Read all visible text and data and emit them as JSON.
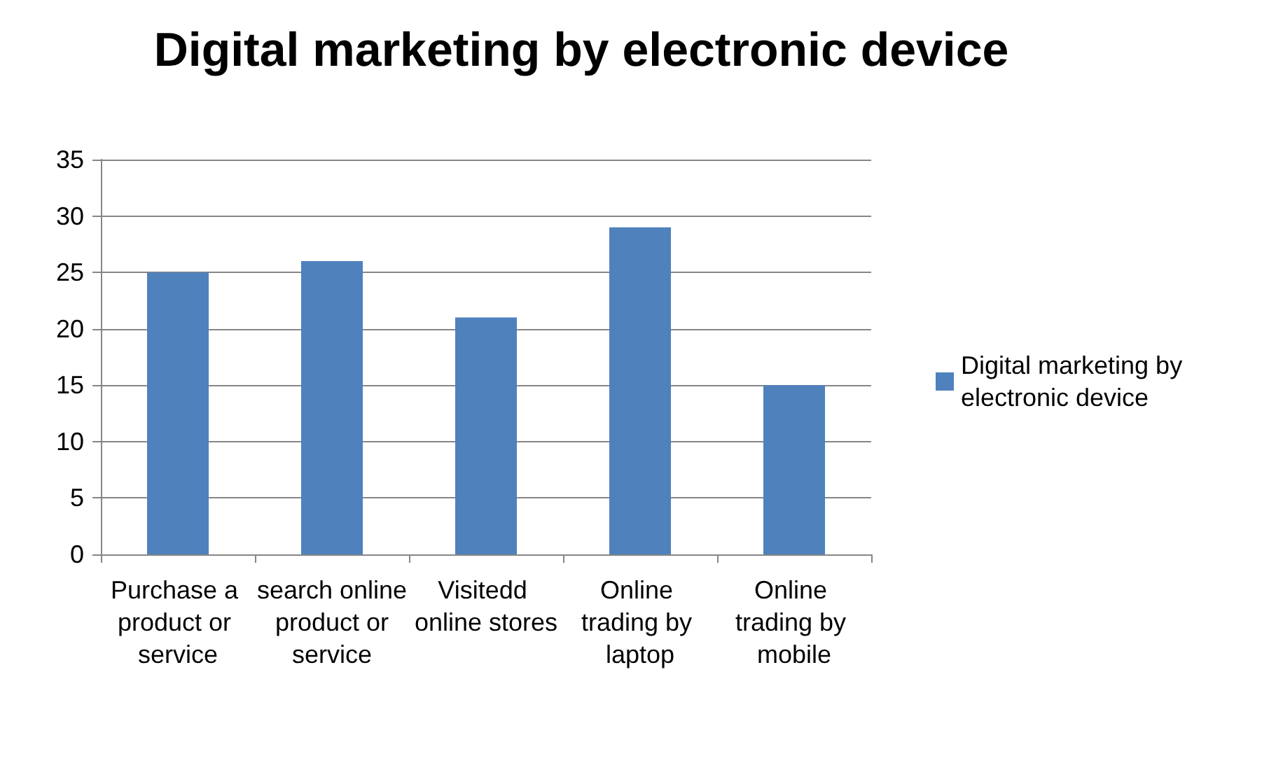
{
  "chart_data": {
    "type": "bar",
    "title": "Digital marketing by electronic device",
    "categories": [
      "Purchase a product or service",
      "search online product or service",
      "Visitedd online stores",
      "Online trading by laptop",
      "Online trading by mobile"
    ],
    "series": [
      {
        "name": "Digital marketing by electronic device",
        "color": "#4f81bd",
        "values": [
          25,
          26,
          21,
          29,
          15
        ]
      }
    ],
    "ylim": [
      0,
      35
    ],
    "yticks": [
      0,
      5,
      10,
      15,
      20,
      25,
      30,
      35
    ],
    "grid": "y",
    "legend": "right"
  }
}
